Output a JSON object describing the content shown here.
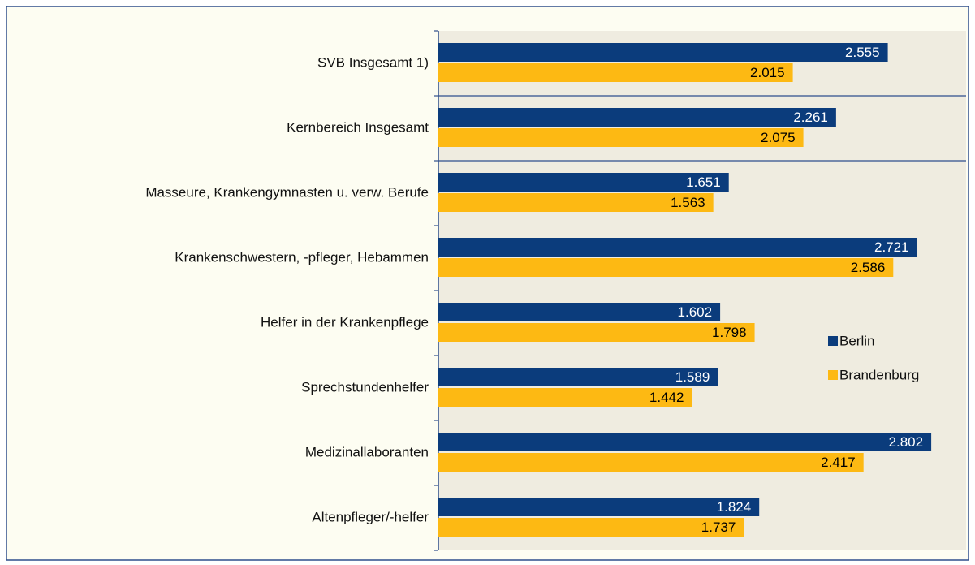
{
  "chart_data": {
    "type": "barh",
    "categories": [
      "SVB Insgesamt 1)",
      "Kernbereich Insgesamt",
      "Masseure, Krankengymnasten u. verw. Berufe",
      "Krankenschwestern, -pfleger, Hebammen",
      "Helfer in der Krankenpflege",
      "Sprechstundenhelfer",
      "Medizinallaboranten",
      "Altenpfleger/-helfer"
    ],
    "series": [
      {
        "name": "Berlin",
        "color": "#0b3c7c",
        "values": [
          2555,
          2261,
          1651,
          2721,
          1602,
          1589,
          2802,
          1824
        ],
        "value_labels": [
          "2.555",
          "2.261",
          "1.651",
          "2.721",
          "1.602",
          "1.589",
          "2.802",
          "1.824"
        ]
      },
      {
        "name": "Brandenburg",
        "color": "#fdb913",
        "values": [
          2015,
          2075,
          1563,
          2586,
          1798,
          1442,
          2417,
          1737
        ],
        "value_labels": [
          "2.015",
          "2.075",
          "1.563",
          "2.586",
          "1.798",
          "1.442",
          "2.417",
          "1.737"
        ]
      }
    ],
    "xlim": [
      0,
      3000
    ],
    "legend": "right"
  }
}
